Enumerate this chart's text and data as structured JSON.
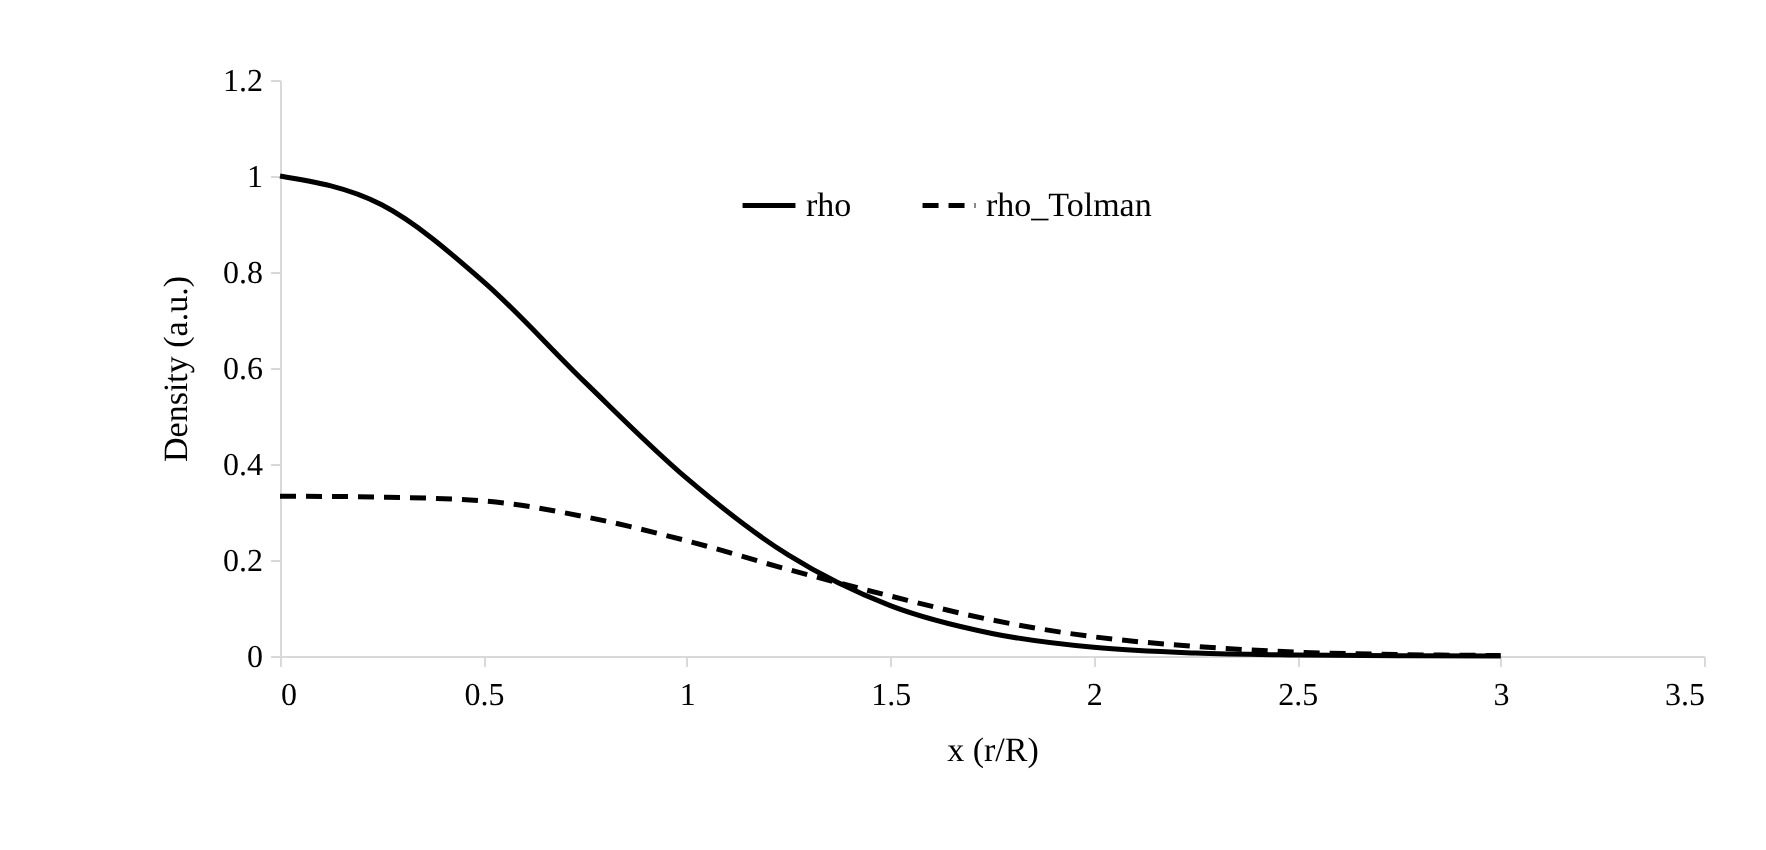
{
  "chart_data": {
    "type": "line",
    "xlabel": "x (r/R)",
    "ylabel": "Density (a.u.)",
    "x": [
      0,
      0.25,
      0.5,
      0.75,
      1,
      1.25,
      1.5,
      1.75,
      2,
      2.25,
      2.5,
      2.75,
      3
    ],
    "series": [
      {
        "name": "rho",
        "color": "#000000",
        "line_style": "solid",
        "values": [
          1,
          0.94,
          0.78,
          0.57,
          0.37,
          0.21,
          0.105,
          0.047,
          0.018,
          0.006,
          0.002,
          0.0005,
          0.0001
        ]
      },
      {
        "name": "rho_Tolman",
        "color": "#000000",
        "line_style": "dashed",
        "values": [
          0.333,
          0.331,
          0.323,
          0.29,
          0.24,
          0.18,
          0.125,
          0.075,
          0.04,
          0.02,
          0.008,
          0.003,
          0.001
        ]
      }
    ],
    "xlim": [
      0,
      3.5
    ],
    "xticks": [
      0,
      0.5,
      1,
      1.5,
      2,
      2.5,
      3,
      3.5
    ],
    "ylim": [
      0,
      1.2
    ],
    "yticks": [
      0,
      0.2,
      0.4,
      0.6,
      0.8,
      1,
      1.2
    ],
    "grid": false,
    "legend": "top",
    "marker": "none"
  }
}
